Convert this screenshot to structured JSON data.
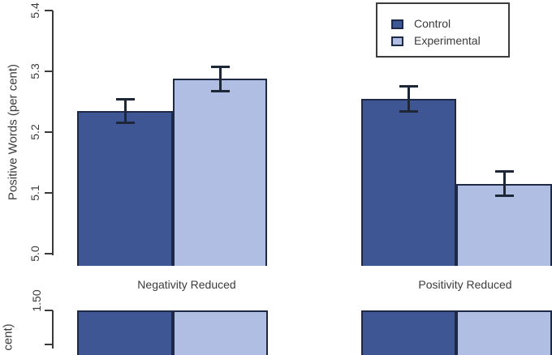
{
  "colors": {
    "control": "#3e5794",
    "experimental": "#afbee2",
    "bar_border": "#1e2947",
    "error_bar": "#1d2738",
    "axis": "#3a3a3a",
    "text": "#3b3b3b",
    "legend_border": "#3c3c3c"
  },
  "legend": {
    "items": [
      "Control",
      "Experimental"
    ]
  },
  "chart_data": [
    {
      "type": "bar",
      "title": "",
      "xlabel": "",
      "ylabel": "Positive Words (per cent)",
      "categories": [
        "Negativity Reduced",
        "Positivity Reduced"
      ],
      "series": [
        {
          "name": "Control",
          "color": "#3e5794",
          "values": [
            5.235,
            5.255
          ],
          "errors": [
            0.021,
            0.023
          ]
        },
        {
          "name": "Experimental",
          "color": "#afbee2",
          "values": [
            5.288,
            5.115
          ],
          "errors": [
            0.022,
            0.022
          ]
        }
      ],
      "ylim": [
        5.0,
        5.4
      ],
      "yticks": [
        "5.0",
        "5.1",
        "5.2",
        "5.3",
        "5.4"
      ],
      "legend_position": "top-right",
      "grid": false,
      "error_bars": true
    },
    {
      "type": "bar",
      "ylabel_visible_fragment": "cent)",
      "yticks_visible": [
        "1.50"
      ],
      "categories": [
        "Negativity Reduced",
        "Positivity Reduced"
      ],
      "series": [
        {
          "name": "Control",
          "color": "#3e5794"
        },
        {
          "name": "Experimental",
          "color": "#afbee2"
        }
      ],
      "note": "panel cropped at bottom edge of screenshot; only bar tops visible"
    }
  ]
}
